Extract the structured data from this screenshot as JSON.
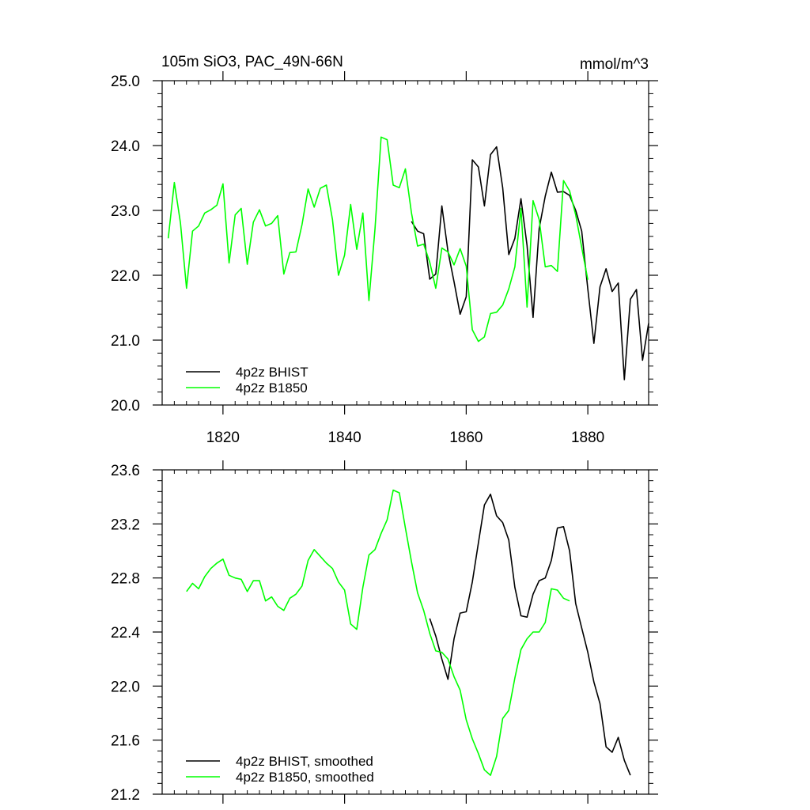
{
  "title_left": "105m SiO3, PAC_49N-66N",
  "title_right": "mmol/m^3",
  "colors": {
    "bhist": "#000000",
    "b1850": "#00ff00"
  },
  "chart_data": [
    {
      "type": "line",
      "xlim": [
        1810,
        1890
      ],
      "ylim": [
        20.0,
        25.0
      ],
      "xticks": [
        1820,
        1840,
        1860,
        1880
      ],
      "xtick_labels": [
        "1820",
        "1840",
        "1860",
        "1880"
      ],
      "yticks": [
        20.0,
        21.0,
        22.0,
        23.0,
        24.0,
        25.0
      ],
      "ytick_labels": [
        "20.0",
        "21.0",
        "22.0",
        "23.0",
        "24.0",
        "25.0"
      ],
      "legend_position": "bottom-left",
      "series": [
        {
          "name": "4p2z BHIST",
          "color_key": "bhist",
          "x": [
            1851,
            1852,
            1853,
            1854,
            1855,
            1856,
            1857,
            1858,
            1859,
            1860,
            1861,
            1862,
            1863,
            1864,
            1865,
            1866,
            1867,
            1868,
            1869,
            1870,
            1871,
            1872,
            1873,
            1874,
            1875,
            1876,
            1877,
            1878,
            1879,
            1880,
            1881,
            1882,
            1883,
            1884,
            1885,
            1886,
            1887,
            1888,
            1889,
            1890
          ],
          "y": [
            22.83,
            22.68,
            22.64,
            21.94,
            22.02,
            23.07,
            22.37,
            21.9,
            21.4,
            21.67,
            23.78,
            23.67,
            23.07,
            23.86,
            23.98,
            23.35,
            22.32,
            22.57,
            23.18,
            22.46,
            21.35,
            22.72,
            23.22,
            23.59,
            23.28,
            23.29,
            23.23,
            23.0,
            22.68,
            21.79,
            20.95,
            21.82,
            22.1,
            21.75,
            21.88,
            20.39,
            21.63,
            21.78,
            20.69,
            21.26
          ]
        },
        {
          "name": "4p2z B1850",
          "color_key": "b1850",
          "x": [
            1811,
            1812,
            1813,
            1814,
            1815,
            1816,
            1817,
            1818,
            1819,
            1820,
            1821,
            1822,
            1823,
            1824,
            1825,
            1826,
            1827,
            1828,
            1829,
            1830,
            1831,
            1832,
            1833,
            1834,
            1835,
            1836,
            1837,
            1838,
            1839,
            1840,
            1841,
            1842,
            1843,
            1844,
            1845,
            1846,
            1847,
            1848,
            1849,
            1850,
            1851,
            1852,
            1853,
            1854,
            1855,
            1856,
            1857,
            1858,
            1859,
            1860,
            1861,
            1862,
            1863,
            1864,
            1865,
            1866,
            1867,
            1868,
            1869,
            1870,
            1871,
            1872,
            1873,
            1874,
            1875,
            1876,
            1877,
            1878,
            1879,
            1880
          ],
          "y": [
            22.57,
            23.43,
            22.81,
            21.8,
            22.68,
            22.76,
            22.96,
            23.01,
            23.08,
            23.41,
            22.19,
            22.93,
            23.03,
            22.17,
            22.82,
            23.01,
            22.76,
            22.8,
            22.92,
            22.02,
            22.35,
            22.36,
            22.78,
            23.33,
            23.05,
            23.34,
            23.39,
            22.86,
            22.0,
            22.31,
            23.09,
            22.4,
            22.96,
            21.61,
            22.72,
            24.13,
            24.09,
            23.39,
            23.35,
            23.64,
            22.96,
            22.45,
            22.48,
            22.2,
            21.8,
            22.42,
            22.36,
            22.16,
            22.41,
            22.14,
            21.16,
            20.98,
            21.05,
            21.41,
            21.43,
            21.54,
            21.79,
            22.13,
            23.03,
            21.51,
            23.15,
            22.86,
            22.13,
            22.15,
            22.06,
            23.46,
            23.3,
            22.93,
            22.43,
            21.93
          ]
        }
      ]
    },
    {
      "type": "line",
      "xlim": [
        1810,
        1890
      ],
      "ylim": [
        21.2,
        23.6
      ],
      "xticks": [
        1820,
        1840,
        1860,
        1880
      ],
      "xtick_labels": [],
      "yticks": [
        21.2,
        21.6,
        22.0,
        22.4,
        22.8,
        23.2,
        23.6
      ],
      "ytick_labels": [
        "21.2",
        "21.6",
        "22.0",
        "22.4",
        "22.8",
        "23.2",
        "23.6"
      ],
      "legend_position": "bottom-left",
      "series": [
        {
          "name": "4p2z BHIST, smoothed",
          "color_key": "bhist",
          "x": [
            1854,
            1855,
            1856,
            1857,
            1858,
            1859,
            1860,
            1861,
            1862,
            1863,
            1864,
            1865,
            1866,
            1867,
            1868,
            1869,
            1870,
            1871,
            1872,
            1873,
            1874,
            1875,
            1876,
            1877,
            1878,
            1879,
            1880,
            1881,
            1882,
            1883,
            1884,
            1885,
            1886,
            1887
          ],
          "y": [
            22.5,
            22.37,
            22.2,
            22.05,
            22.35,
            22.54,
            22.55,
            22.77,
            23.06,
            23.34,
            23.42,
            23.26,
            23.21,
            23.08,
            22.73,
            22.52,
            22.51,
            22.68,
            22.78,
            22.8,
            22.93,
            23.17,
            23.18,
            23.0,
            22.61,
            22.43,
            22.25,
            22.03,
            21.87,
            21.55,
            21.51,
            21.62,
            21.45,
            21.34
          ]
        },
        {
          "name": "4p2z B1850, smoothed",
          "color_key": "b1850",
          "x": [
            1814,
            1815,
            1816,
            1817,
            1818,
            1819,
            1820,
            1821,
            1822,
            1823,
            1824,
            1825,
            1826,
            1827,
            1828,
            1829,
            1830,
            1831,
            1832,
            1833,
            1834,
            1835,
            1836,
            1837,
            1838,
            1839,
            1840,
            1841,
            1842,
            1843,
            1844,
            1845,
            1846,
            1847,
            1848,
            1849,
            1850,
            1851,
            1852,
            1853,
            1854,
            1855,
            1856,
            1857,
            1858,
            1859,
            1860,
            1861,
            1862,
            1863,
            1864,
            1865,
            1866,
            1867,
            1868,
            1869,
            1870,
            1871,
            1872,
            1873,
            1874,
            1875,
            1876,
            1877
          ],
          "y": [
            22.7,
            22.76,
            22.72,
            22.81,
            22.87,
            22.91,
            22.94,
            22.82,
            22.8,
            22.79,
            22.7,
            22.78,
            22.78,
            22.63,
            22.66,
            22.59,
            22.56,
            22.65,
            22.68,
            22.74,
            22.93,
            23.01,
            22.96,
            22.91,
            22.87,
            22.77,
            22.71,
            22.46,
            22.42,
            22.73,
            22.97,
            23.01,
            23.13,
            23.23,
            23.45,
            23.43,
            23.17,
            22.92,
            22.69,
            22.56,
            22.39,
            22.26,
            22.25,
            22.2,
            22.07,
            21.97,
            21.75,
            21.61,
            21.5,
            21.38,
            21.34,
            21.48,
            21.76,
            21.82,
            22.06,
            22.27,
            22.35,
            22.4,
            22.4,
            22.47,
            22.72,
            22.71,
            22.65,
            22.63
          ]
        }
      ]
    }
  ]
}
